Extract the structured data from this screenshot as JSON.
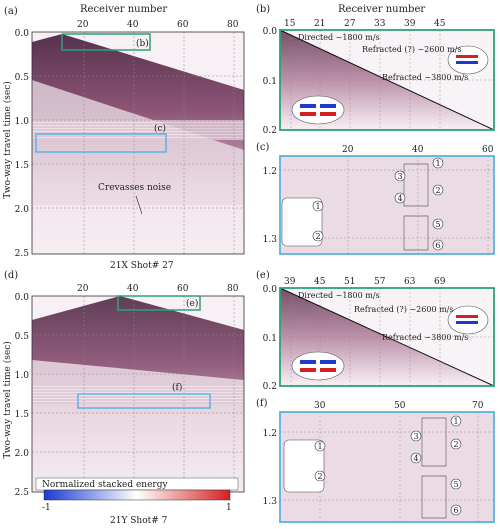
{
  "panels": {
    "a": {
      "letter": "(a)",
      "top_label": "Receiver number",
      "x_ticks": [
        "20",
        "40",
        "60",
        "80"
      ],
      "y_ticks": [
        "0.0",
        "0.5",
        "1.0",
        "1.5",
        "2.0",
        "2.5"
      ],
      "box1": "(b)",
      "box2": "(c)",
      "annotation": "Crevasses noise",
      "caption": "21X Shot# 27"
    },
    "b": {
      "letter": "(b)",
      "top_label": "Receiver number",
      "x_ticks": [
        "15",
        "21",
        "27",
        "33",
        "39",
        "45"
      ],
      "y_ticks": [
        "0.0",
        "0.1",
        "0.2"
      ],
      "labels": [
        "Directed ~1800 m/s",
        "Refracted (?) ~2600 m/s",
        "Refracted ~3800 m/s"
      ]
    },
    "c": {
      "letter": "(c)",
      "x_ticks": [
        "20",
        "40",
        "60"
      ],
      "y_ticks": [
        "1.2",
        "1.3"
      ],
      "circles": [
        "1",
        "2",
        "3",
        "4",
        "5",
        "6"
      ],
      "inset_circles": [
        "1",
        "2"
      ]
    },
    "d": {
      "letter": "(d)",
      "x_ticks": [
        "20",
        "40",
        "60",
        "80"
      ],
      "y_ticks": [
        "0.0",
        "0.5",
        "1.0",
        "1.5",
        "2.0",
        "2.5"
      ],
      "box1": "(e)",
      "box2": "(f)",
      "caption": "21Y Shot# 7",
      "colorbar_title": "Normalized stacked energy",
      "colorbar_min": "-1",
      "colorbar_max": "1"
    },
    "e": {
      "letter": "(e)",
      "x_ticks": [
        "39",
        "45",
        "51",
        "57",
        "63",
        "69"
      ],
      "y_ticks": [
        "0.0",
        "0.1",
        "0.2"
      ],
      "labels": [
        "Directed ~1800 m/s",
        "Refracted (?) ~2600 m/s",
        "Refracted ~3800 m/s"
      ]
    },
    "f": {
      "letter": "(f)",
      "x_ticks": [
        "30",
        "50",
        "70"
      ],
      "y_ticks": [
        "1.2",
        "1.3"
      ],
      "circles": [
        "1",
        "2",
        "3",
        "4",
        "5",
        "6"
      ],
      "inset_circles": [
        "1",
        "2"
      ]
    }
  },
  "y_axis_label": "Two-way travel time (sec)",
  "colors": {
    "green_box": "#2aa37a",
    "blue_box": "#5ab4e0",
    "seismic": "#6b2a4a",
    "red": "#d42020",
    "blue": "#1a3ad0"
  }
}
